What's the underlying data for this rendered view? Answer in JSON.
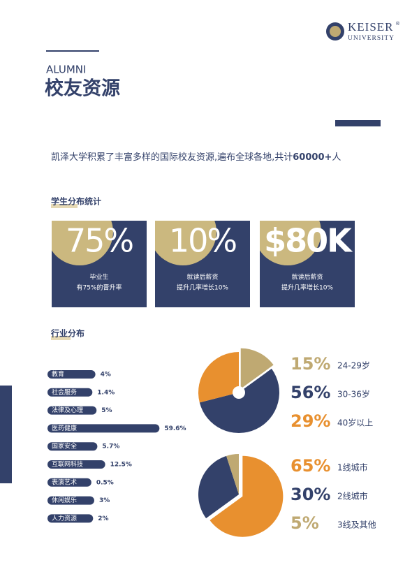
{
  "header": {
    "logo_name": "KEISER",
    "logo_mark": "®",
    "logo_sub": "UNIVERSITY",
    "kicker": "ALUMNI",
    "title": "校友资源"
  },
  "intro": {
    "text": "凯泽大学积累了丰富多样的国际校友资源,遍布全球各地,共计",
    "highlight": "60000+",
    "suffix": "人"
  },
  "stats": {
    "title": "学生分布统计",
    "cards": [
      {
        "value": "75%",
        "line1": "毕业生",
        "line2": "有75%的晋升率"
      },
      {
        "value": "10%",
        "line1": "就读后薪资",
        "line2": "提升几率增长10%"
      },
      {
        "value": "$80K",
        "line1": "就读后薪资",
        "line2": "提升几率增长10%"
      }
    ]
  },
  "chart_data": [
    {
      "type": "hbar",
      "title": "行业分布",
      "color": "#33416a",
      "categories": [
        "教育",
        "社会服务",
        "法律及心理",
        "医药健康",
        "国家安全",
        "互联网科技",
        "表演艺术",
        "休闲娱乐",
        "人力资源"
      ],
      "values": [
        4,
        1.4,
        5,
        59.6,
        5.7,
        12.5,
        0.5,
        3,
        2
      ],
      "value_labels": [
        "4%",
        "1.4%",
        "5%",
        "59.6%",
        "5.7%",
        "12.5%",
        "0.5%",
        "3%",
        "2%"
      ]
    },
    {
      "type": "pie",
      "categories": [
        "24-29岁",
        "30-36岁",
        "40岁以上"
      ],
      "values": [
        15,
        56,
        29
      ],
      "value_labels": [
        "15%",
        "56%",
        "29%"
      ],
      "colors": [
        "#bfa972",
        "#33416a",
        "#e8902f"
      ]
    },
    {
      "type": "pie",
      "categories": [
        "1线城市",
        "2线城市",
        "3线及其他"
      ],
      "values": [
        65,
        30,
        5
      ],
      "value_labels": [
        "65%",
        "30%",
        "5%"
      ],
      "colors": [
        "#e8902f",
        "#33416a",
        "#bfa972"
      ]
    }
  ]
}
